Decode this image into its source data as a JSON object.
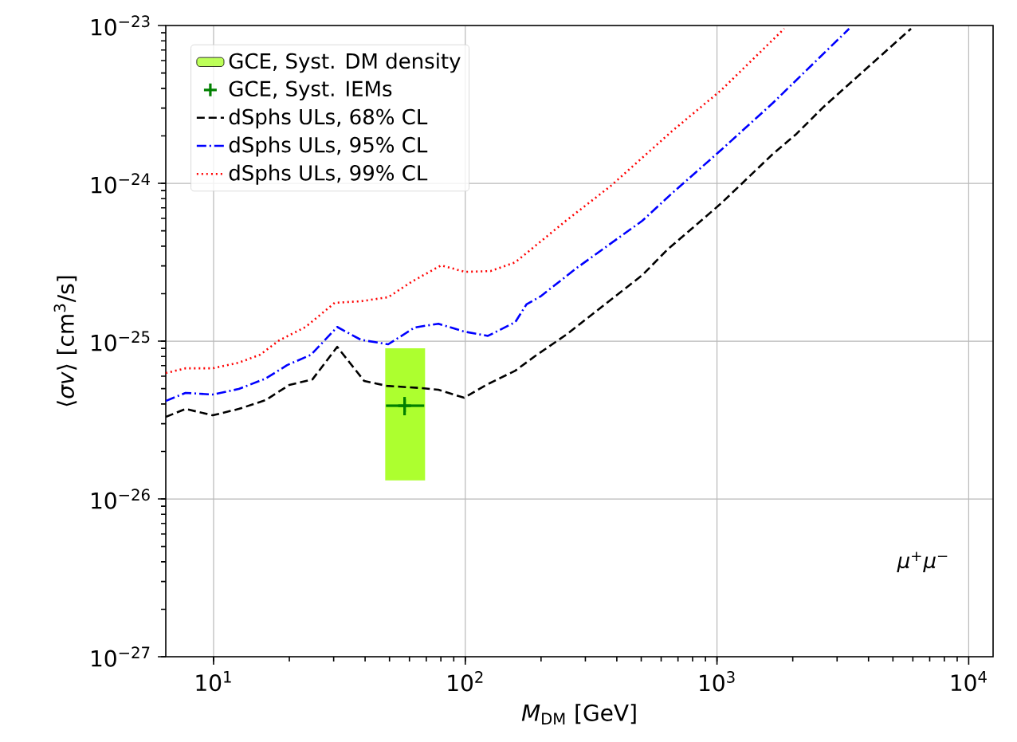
{
  "chart_data": {
    "type": "line",
    "xlabel": "*M*$_{DM}$ [GeV]",
    "ylabel": "⟨*σv*⟩ [cm$^{3}$/s]",
    "log": "xy",
    "grid": true,
    "legend": "top left",
    "xlim": [
      6.46,
      12500
    ],
    "ylim": [
      1e-27,
      1e-23
    ],
    "xticks": [
      {
        "value": 10,
        "label": "10$^{1}$"
      },
      {
        "value": 100,
        "label": "10$^{2}$"
      },
      {
        "value": 1000,
        "label": "10$^{3}$"
      },
      {
        "value": 10000,
        "label": "10$^{4}$"
      }
    ],
    "yticks": [
      {
        "value": 1e-27,
        "label": "10$^{−27}$"
      },
      {
        "value": 1e-26,
        "label": "10$^{−26}$"
      },
      {
        "value": 1e-25,
        "label": "10$^{−25}$"
      },
      {
        "value": 1e-24,
        "label": "10$^{−24}$"
      },
      {
        "value": 1e-23,
        "label": "10$^{−23}$"
      }
    ],
    "annotations": [
      "*μ*$^{+}$*μ*$^{−}$"
    ],
    "series": [
      {
        "name": "GCE, Syst. DM density",
        "type": "bar",
        "color": "#adff2f",
        "x": [
          57.7
        ],
        "base": [
          1.31e-26
        ],
        "values": [
          7.69e-26
        ]
      },
      {
        "name": "GCE, Syst. IEMs",
        "type": "scatter",
        "color": "#008000",
        "marker": "cross",
        "x": [
          57.4
        ],
        "values": [
          3.9e-26
        ],
        "errors": [
          [
            3.39e-26,
            4.43e-26
          ]
        ],
        "xerrors": [
          [
            48.4,
            68.7
          ]
        ]
      },
      {
        "name": "dSphs ULs, 68% CL",
        "color": "#000000",
        "line_style": "dashed",
        "x": [
          6.46,
          7.74,
          9.93,
          12.6,
          16.1,
          20.0,
          24.7,
          31.0,
          39.7,
          48.8,
          67.4,
          78.2,
          98.9,
          121,
          158,
          189,
          252,
          505,
          636,
          1040,
          1670,
          2070,
          2650,
          5900
        ],
        "values": [
          3.31e-26,
          3.72e-26,
          3.39e-26,
          3.72e-26,
          4.23e-26,
          5.28e-26,
          5.72e-26,
          9.2e-26,
          5.59e-26,
          5.21e-26,
          5.04e-26,
          4.92e-26,
          4.38e-26,
          5.28e-26,
          6.5e-26,
          8.02e-26,
          1.1e-25,
          2.62e-25,
          3.81e-25,
          7.48e-25,
          1.54e-24,
          2.06e-24,
          3.05e-24,
          9.55e-24
        ]
      },
      {
        "name": "dSphs ULs, 95% CL",
        "color": "#0000ff",
        "line_style": "dashdot",
        "x": [
          6.46,
          7.74,
          9.93,
          12.6,
          16.1,
          19.6,
          24.4,
          31.0,
          38.5,
          49.4,
          62.9,
          78.2,
          98.9,
          123,
          158,
          175,
          199,
          278,
          505,
          660,
          1040,
          1670,
          3350
        ],
        "values": [
          4.18e-26,
          4.7e-26,
          4.59e-26,
          4.98e-26,
          5.79e-26,
          7.05e-26,
          8.2e-26,
          1.23e-25,
          1.02e-25,
          9.55e-26,
          1.22e-25,
          1.29e-25,
          1.15e-25,
          1.08e-25,
          1.32e-25,
          1.71e-25,
          1.92e-25,
          2.92e-25,
          5.79e-25,
          8.6e-25,
          1.63e-24,
          3.24e-24,
          9.55e-24
        ]
      },
      {
        "name": "dSphs ULs, 99% CL",
        "color": "#ff0000",
        "line_style": "dotted",
        "x": [
          6.46,
          7.74,
          9.93,
          12.6,
          15.3,
          18.2,
          23.2,
          30.3,
          38.5,
          49.4,
          61.5,
          80.1,
          99.9,
          126,
          158,
          251,
          376,
          660,
          1040,
          1850
        ],
        "values": [
          6.28e-26,
          6.73e-26,
          6.73e-26,
          7.31e-26,
          8.2e-26,
          1.01e-25,
          1.23e-25,
          1.75e-25,
          1.79e-25,
          1.9e-25,
          2.39e-25,
          3.02e-25,
          2.75e-25,
          2.78e-25,
          3.16e-25,
          5.79e-25,
          9.55e-25,
          2.13e-24,
          3.9e-24,
          9.55e-24
        ]
      }
    ]
  }
}
